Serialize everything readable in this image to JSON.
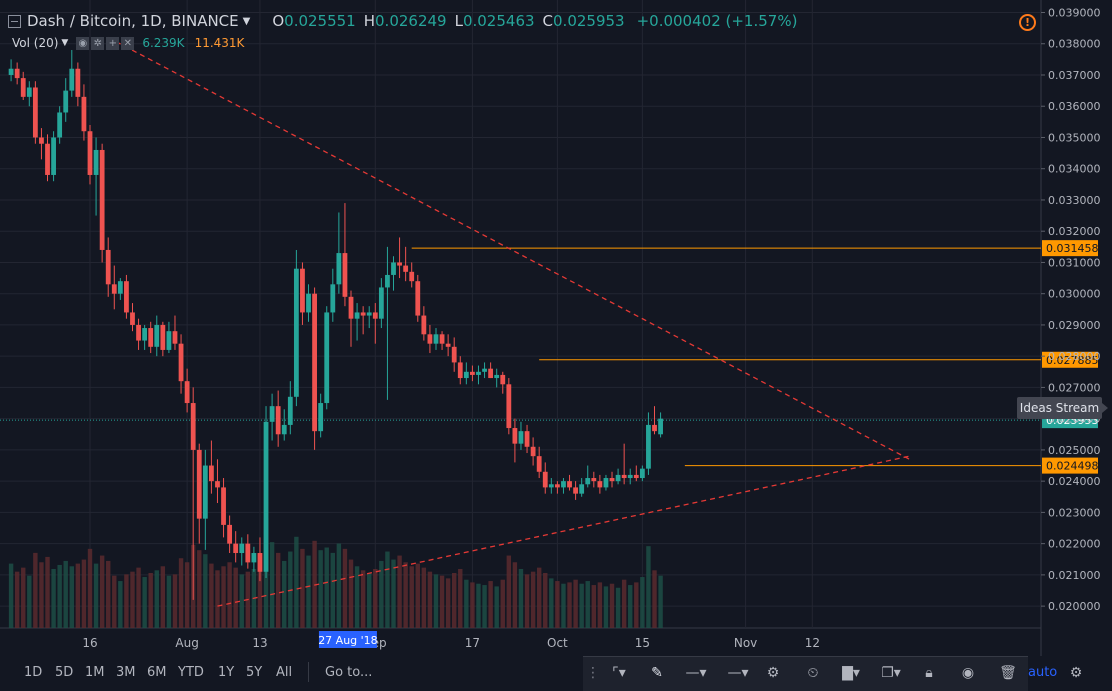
{
  "legend": {
    "symbol": "Dash / Bitcoin, 1D, BINANCE",
    "open_label": "O",
    "open": "0.025551",
    "high_label": "H",
    "high": "0.026249",
    "low_label": "L",
    "low": "0.025463",
    "close_label": "C",
    "close": "0.025953",
    "change": "+0.000402 (+1.57%)"
  },
  "volume": {
    "label": "Vol (20)",
    "value1": "6.239K",
    "value2": "11.431K"
  },
  "ideas_stream": "Ideas Stream",
  "timeframes": [
    "1D",
    "5D",
    "1M",
    "3M",
    "6M",
    "YTD",
    "1Y",
    "5Y",
    "All"
  ],
  "goto_label": "Go to...",
  "auto_label": "auto",
  "colors": {
    "background": "#131722",
    "up": "#26a69a",
    "down": "#ef5350",
    "level": "#ff9800",
    "trend": "#e53935"
  },
  "chart_data": {
    "type": "candlestick",
    "y_ticks": [
      "0.039000",
      "0.038000",
      "0.037000",
      "0.036000",
      "0.035000",
      "0.034000",
      "0.033000",
      "0.032000",
      "0.031000",
      "0.030000",
      "0.029000",
      "0.028000",
      "0.027000",
      "0.026000",
      "0.025000",
      "0.024000",
      "0.023000",
      "0.022000",
      "0.021000",
      "0.020000"
    ],
    "ylim": [
      0.0193,
      0.0394
    ],
    "x_ticks": [
      {
        "label": "16",
        "day": 0
      },
      {
        "label": "Aug",
        "day": 16
      },
      {
        "label": "13",
        "day": 28
      },
      {
        "label": "Sep",
        "day": 47
      },
      {
        "label": "17",
        "day": 63
      },
      {
        "label": "Oct",
        "day": 77
      },
      {
        "label": "15",
        "day": 91
      },
      {
        "label": "Nov",
        "day": 108
      },
      {
        "label": "12",
        "day": 119
      }
    ],
    "crosshair_date": "27 Aug '18",
    "crosshair_day": 42,
    "last_price": 0.025953,
    "last_price_label": "0.025953",
    "levels": [
      {
        "value": 0.031458,
        "label": "0.031458",
        "from_day": 53
      },
      {
        "value": 0.027885,
        "label": "0.027885",
        "from_day": 74
      },
      {
        "value": 0.024498,
        "label": "0.024498",
        "from_day": 98
      }
    ],
    "trendlines": [
      {
        "from_day": 3,
        "from_value": 0.0382,
        "to_day": 135,
        "to_value": 0.0247
      },
      {
        "from_day": 21,
        "from_value": 0.02,
        "to_day": 135,
        "to_value": 0.0248
      }
    ],
    "candles": [
      [
        0.037,
        0.0375,
        0.0368,
        0.0372,
        4.8
      ],
      [
        0.0372,
        0.0374,
        0.0367,
        0.0369,
        4.2
      ],
      [
        0.0369,
        0.0371,
        0.0362,
        0.0363,
        4.5
      ],
      [
        0.0363,
        0.0368,
        0.036,
        0.0366,
        3.9
      ],
      [
        0.0366,
        0.0368,
        0.0348,
        0.035,
        5.6
      ],
      [
        0.035,
        0.0353,
        0.0343,
        0.0348,
        4.9
      ],
      [
        0.0348,
        0.0351,
        0.0336,
        0.0338,
        5.3
      ],
      [
        0.0338,
        0.0352,
        0.0336,
        0.035,
        4.4
      ],
      [
        0.035,
        0.036,
        0.0348,
        0.0358,
        4.7
      ],
      [
        0.0358,
        0.0369,
        0.0355,
        0.0365,
        5.0
      ],
      [
        0.0365,
        0.0378,
        0.0363,
        0.0372,
        4.6
      ],
      [
        0.0372,
        0.0374,
        0.036,
        0.0363,
        4.8
      ],
      [
        0.0363,
        0.0367,
        0.0349,
        0.0352,
        5.1
      ],
      [
        0.0352,
        0.0354,
        0.0335,
        0.0338,
        5.9
      ],
      [
        0.0338,
        0.035,
        0.0325,
        0.0346,
        4.8
      ],
      [
        0.0346,
        0.0348,
        0.031,
        0.0314,
        5.4
      ],
      [
        0.0314,
        0.0318,
        0.0299,
        0.0303,
        5.0
      ],
      [
        0.0303,
        0.0309,
        0.0295,
        0.03,
        3.9
      ],
      [
        0.03,
        0.0305,
        0.0298,
        0.0304,
        3.5
      ],
      [
        0.0304,
        0.0306,
        0.0292,
        0.0294,
        4.0
      ],
      [
        0.0294,
        0.0297,
        0.0288,
        0.029,
        4.2
      ],
      [
        0.029,
        0.0292,
        0.0282,
        0.0285,
        4.5
      ],
      [
        0.0285,
        0.029,
        0.0282,
        0.0289,
        3.8
      ],
      [
        0.0289,
        0.0291,
        0.0281,
        0.0283,
        4.1
      ],
      [
        0.0283,
        0.0293,
        0.028,
        0.029,
        4.3
      ],
      [
        0.029,
        0.0291,
        0.028,
        0.0282,
        4.6
      ],
      [
        0.0282,
        0.0291,
        0.0281,
        0.0288,
        3.9
      ],
      [
        0.0288,
        0.0293,
        0.0282,
        0.0284,
        4.0
      ],
      [
        0.0284,
        0.0287,
        0.0268,
        0.0272,
        5.2
      ],
      [
        0.0272,
        0.0276,
        0.0262,
        0.0265,
        4.9
      ],
      [
        0.0265,
        0.027,
        0.0202,
        0.025,
        6.2
      ],
      [
        0.025,
        0.0252,
        0.022,
        0.0228,
        5.8
      ],
      [
        0.0228,
        0.025,
        0.0218,
        0.0245,
        5.5
      ],
      [
        0.0245,
        0.0253,
        0.0236,
        0.024,
        4.8
      ],
      [
        0.024,
        0.0247,
        0.0233,
        0.0238,
        4.3
      ],
      [
        0.0238,
        0.0241,
        0.0222,
        0.0226,
        4.6
      ],
      [
        0.0226,
        0.0229,
        0.0217,
        0.022,
        4.9
      ],
      [
        0.022,
        0.0224,
        0.0214,
        0.0217,
        4.5
      ],
      [
        0.0217,
        0.0222,
        0.0213,
        0.022,
        4.0
      ],
      [
        0.022,
        0.0223,
        0.0212,
        0.0214,
        4.2
      ],
      [
        0.0214,
        0.0219,
        0.0211,
        0.0217,
        4.4
      ],
      [
        0.0217,
        0.0222,
        0.0208,
        0.0211,
        4.8
      ],
      [
        0.0211,
        0.0264,
        0.0209,
        0.0259,
        8.2
      ],
      [
        0.0259,
        0.0268,
        0.0253,
        0.0264,
        6.4
      ],
      [
        0.0264,
        0.0269,
        0.0251,
        0.0255,
        5.6
      ],
      [
        0.0255,
        0.0263,
        0.0253,
        0.0258,
        5.0
      ],
      [
        0.0258,
        0.0272,
        0.0255,
        0.0267,
        5.7
      ],
      [
        0.0267,
        0.0314,
        0.0264,
        0.0308,
        6.8
      ],
      [
        0.0308,
        0.031,
        0.029,
        0.0294,
        5.9
      ],
      [
        0.0294,
        0.0303,
        0.0291,
        0.03,
        5.4
      ],
      [
        0.03,
        0.0302,
        0.025,
        0.0256,
        6.5
      ],
      [
        0.0256,
        0.0268,
        0.0254,
        0.0265,
        5.8
      ],
      [
        0.0265,
        0.0296,
        0.0263,
        0.0294,
        6.0
      ],
      [
        0.0294,
        0.0308,
        0.0291,
        0.0303,
        5.6
      ],
      [
        0.0303,
        0.0326,
        0.03,
        0.0313,
        6.3
      ],
      [
        0.0313,
        0.0329,
        0.0296,
        0.0299,
        5.9
      ],
      [
        0.0299,
        0.0301,
        0.0283,
        0.0292,
        5.1
      ],
      [
        0.0292,
        0.0297,
        0.0285,
        0.0294,
        4.6
      ],
      [
        0.0294,
        0.0296,
        0.0287,
        0.0293,
        4.3
      ],
      [
        0.0293,
        0.0296,
        0.0289,
        0.0294,
        4.1
      ],
      [
        0.0294,
        0.0297,
        0.0284,
        0.0292,
        4.4
      ],
      [
        0.0292,
        0.0305,
        0.0289,
        0.0302,
        5.0
      ],
      [
        0.0302,
        0.0315,
        0.0266,
        0.0306,
        5.7
      ],
      [
        0.0306,
        0.0312,
        0.0301,
        0.031,
        5.1
      ],
      [
        0.031,
        0.0318,
        0.0305,
        0.0309,
        5.4
      ],
      [
        0.0309,
        0.0315,
        0.0304,
        0.0307,
        4.9
      ],
      [
        0.0307,
        0.031,
        0.0302,
        0.0304,
        4.6
      ],
      [
        0.0304,
        0.0306,
        0.0291,
        0.0293,
        4.8
      ],
      [
        0.0293,
        0.0296,
        0.0285,
        0.0287,
        4.5
      ],
      [
        0.0287,
        0.029,
        0.0281,
        0.0284,
        4.2
      ],
      [
        0.0284,
        0.0289,
        0.0282,
        0.0287,
        4.0
      ],
      [
        0.0287,
        0.0288,
        0.0282,
        0.0284,
        3.9
      ],
      [
        0.0284,
        0.0287,
        0.028,
        0.0283,
        3.7
      ],
      [
        0.0283,
        0.0286,
        0.0275,
        0.0278,
        4.1
      ],
      [
        0.0278,
        0.028,
        0.0271,
        0.0273,
        4.4
      ],
      [
        0.0273,
        0.0278,
        0.0271,
        0.0275,
        3.6
      ],
      [
        0.0275,
        0.0277,
        0.0272,
        0.0274,
        3.4
      ],
      [
        0.0274,
        0.0277,
        0.0271,
        0.0275,
        3.3
      ],
      [
        0.0275,
        0.0278,
        0.0273,
        0.0276,
        3.2
      ],
      [
        0.0276,
        0.0278,
        0.0273,
        0.0273,
        3.5
      ],
      [
        0.0273,
        0.0276,
        0.027,
        0.0274,
        3.1
      ],
      [
        0.0274,
        0.0275,
        0.0268,
        0.0271,
        3.6
      ],
      [
        0.0271,
        0.0273,
        0.0255,
        0.0257,
        5.4
      ],
      [
        0.0257,
        0.026,
        0.0246,
        0.0252,
        4.9
      ],
      [
        0.0252,
        0.0259,
        0.025,
        0.0256,
        4.4
      ],
      [
        0.0256,
        0.0258,
        0.0249,
        0.0251,
        4.0
      ],
      [
        0.0251,
        0.0254,
        0.0245,
        0.0248,
        4.2
      ],
      [
        0.0248,
        0.0251,
        0.0241,
        0.0243,
        4.5
      ],
      [
        0.0243,
        0.0246,
        0.0236,
        0.0238,
        4.1
      ],
      [
        0.0238,
        0.0241,
        0.0236,
        0.0239,
        3.7
      ],
      [
        0.0239,
        0.024,
        0.0236,
        0.0238,
        3.5
      ],
      [
        0.0238,
        0.0241,
        0.0236,
        0.024,
        3.3
      ],
      [
        0.024,
        0.0242,
        0.0237,
        0.0238,
        3.4
      ],
      [
        0.0238,
        0.024,
        0.0234,
        0.0236,
        3.6
      ],
      [
        0.0236,
        0.0241,
        0.0235,
        0.0239,
        3.3
      ],
      [
        0.0239,
        0.0245,
        0.0238,
        0.0241,
        3.5
      ],
      [
        0.0241,
        0.0243,
        0.0238,
        0.024,
        3.2
      ],
      [
        0.024,
        0.0242,
        0.0236,
        0.0238,
        3.4
      ],
      [
        0.0238,
        0.0242,
        0.0237,
        0.0241,
        3.1
      ],
      [
        0.0241,
        0.0243,
        0.0238,
        0.024,
        3.3
      ],
      [
        0.024,
        0.0244,
        0.0239,
        0.0242,
        3.0
      ],
      [
        0.0242,
        0.0252,
        0.0239,
        0.0241,
        3.6
      ],
      [
        0.0241,
        0.0244,
        0.0239,
        0.0242,
        3.2
      ],
      [
        0.0242,
        0.0245,
        0.024,
        0.0241,
        3.4
      ],
      [
        0.0241,
        0.0245,
        0.024,
        0.0244,
        3.8
      ],
      [
        0.0244,
        0.0262,
        0.0242,
        0.0258,
        6.1
      ],
      [
        0.0258,
        0.0264,
        0.0255,
        0.0256,
        4.3
      ],
      [
        0.0255,
        0.0262,
        0.0254,
        0.026,
        3.9
      ]
    ]
  }
}
